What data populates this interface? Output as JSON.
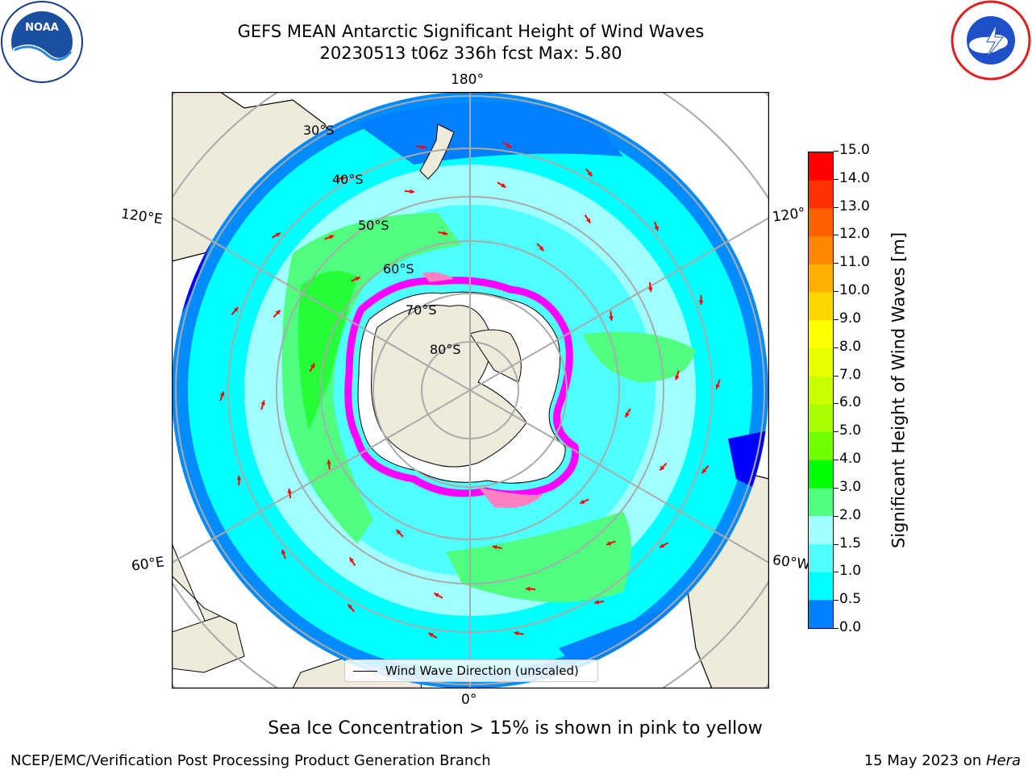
{
  "header": {
    "title_line1": "GEFS MEAN Antarctic Significant Height of Wind Waves",
    "title_line2": "20230513 t06z 336h fcst   Max: 5.80"
  },
  "logos": {
    "left": {
      "icon": "noaa-logo-icon",
      "text": "NOAA"
    },
    "right": {
      "icon": "nws-logo-icon"
    }
  },
  "map": {
    "projection": "south-polar-stereographic",
    "lon_labels": {
      "top": "180°",
      "bottom": "0°",
      "left_upper": "120°E",
      "left_lower": "60°E",
      "right_upper": "120°",
      "right_lower": "60°W"
    },
    "lat_labels": [
      "30°S",
      "40°S",
      "50°S",
      "60°S",
      "70°S",
      "80°S"
    ],
    "land_color": "#efebdc",
    "ocean_colors": {
      "calm": "#0000ff",
      "low": "#0080ff",
      "mid": "#00ffff",
      "high": "#50ff80",
      "ice": "#ff00ff"
    },
    "vector_color": "#ff0000"
  },
  "legend": {
    "label": "Wind Wave Direction (unscaled)"
  },
  "colorbar": {
    "label": "Significant Height of Wind Waves [m]",
    "ticks": [
      "15.0",
      "14.0",
      "13.0",
      "12.0",
      "11.0",
      "10.0",
      "9.0",
      "8.0",
      "7.0",
      "6.0",
      "5.0",
      "4.0",
      "3.0",
      "2.0",
      "1.5",
      "1.0",
      "0.5",
      "0.0"
    ],
    "colors": [
      "#ff0000",
      "#ff3000",
      "#ff6000",
      "#ff8800",
      "#ffb000",
      "#ffd800",
      "#ffff00",
      "#e8ff00",
      "#c8ff00",
      "#a8ff00",
      "#70ff00",
      "#00ff00",
      "#50ff80",
      "#a0ffff",
      "#50ffff",
      "#00ffff",
      "#0080ff",
      "#0000ff"
    ]
  },
  "subtitle": "Sea Ice Concentration > 15% is shown in pink to yellow",
  "footer": {
    "left": "NCEP/EMC/Verification Post Processing Product Generation Branch",
    "right_prefix": "15 May 2023 on ",
    "right_host": "Hera"
  }
}
